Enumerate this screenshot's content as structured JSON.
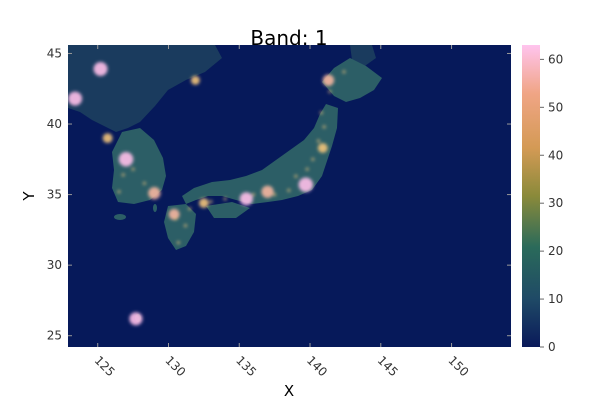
{
  "title": "Band: 1",
  "x_axis": {
    "label": "X",
    "ticks": [
      "125",
      "130",
      "135",
      "140",
      "145",
      "150"
    ],
    "range": [
      122.9,
      154.2
    ]
  },
  "y_axis": {
    "label": "Y",
    "ticks": [
      "25",
      "30",
      "35",
      "40",
      "45"
    ],
    "range": [
      24.2,
      45.6
    ]
  },
  "colorbar": {
    "ticks": [
      "0",
      "10",
      "20",
      "30",
      "40",
      "50",
      "60"
    ],
    "range": [
      0,
      63
    ],
    "colors": [
      "#0a1a5a",
      "#1f4a66",
      "#2a6a5a",
      "#8a8a3a",
      "#d49a55",
      "#f0a585",
      "#ffc4ee"
    ]
  },
  "colors": {
    "ocean": "#06195a",
    "land_dark": "#1a3b5e",
    "land_mid": "#2c5e66",
    "glow": "#f2c47a",
    "hotspot": "#ffc0ea"
  },
  "chart_data": {
    "type": "heatmap",
    "title": "Band: 1",
    "xlabel": "X",
    "ylabel": "Y",
    "xlim": [
      122.9,
      154.2
    ],
    "ylim": [
      24.2,
      45.6
    ],
    "value_range": [
      0,
      63
    ],
    "hotspots": [
      {
        "x": 127.0,
        "y": 37.5,
        "value": 63
      },
      {
        "x": 139.7,
        "y": 35.7,
        "value": 63
      },
      {
        "x": 135.5,
        "y": 34.7,
        "value": 55
      },
      {
        "x": 137.0,
        "y": 35.2,
        "value": 50
      },
      {
        "x": 129.0,
        "y": 35.1,
        "value": 50
      },
      {
        "x": 141.3,
        "y": 43.1,
        "value": 45
      },
      {
        "x": 130.4,
        "y": 33.6,
        "value": 42
      },
      {
        "x": 125.7,
        "y": 39.0,
        "value": 35
      },
      {
        "x": 123.4,
        "y": 41.8,
        "value": 60
      },
      {
        "x": 125.2,
        "y": 43.9,
        "value": 60
      },
      {
        "x": 127.7,
        "y": 26.2,
        "value": 55
      },
      {
        "x": 140.9,
        "y": 38.3,
        "value": 35
      },
      {
        "x": 132.5,
        "y": 34.4,
        "value": 35
      },
      {
        "x": 131.9,
        "y": 43.1,
        "value": 30
      }
    ]
  }
}
